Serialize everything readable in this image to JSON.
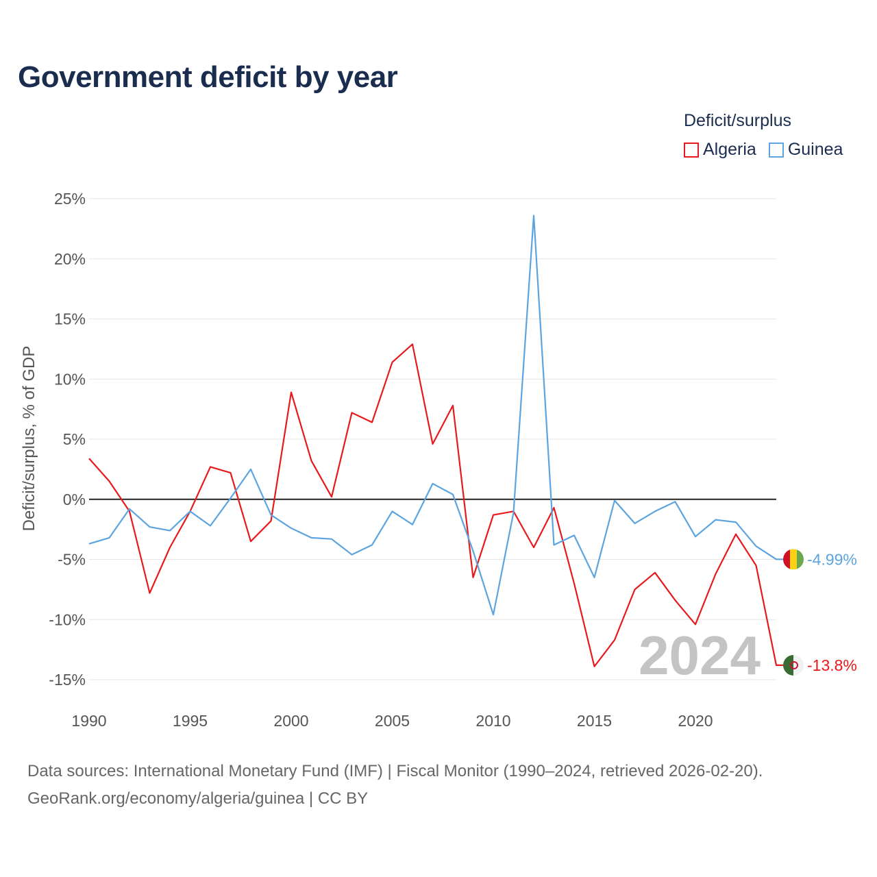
{
  "title": "Government deficit by year",
  "legend": {
    "title": "Deficit/surplus",
    "items": [
      {
        "label": "Algeria",
        "color": "#e8191b"
      },
      {
        "label": "Guinea",
        "color": "#5ba4e0"
      }
    ]
  },
  "footer": {
    "line1": "Data sources: International Monetary Fund (IMF) | Fiscal Monitor (1990–2024, retrieved 2026-02-20).",
    "line2": "GeoRank.org/economy/algeria/guinea | CC BY"
  },
  "chart_data": {
    "type": "line",
    "title": "Government deficit by year",
    "xlabel": "",
    "ylabel": "Deficit/surplus, % of GDP",
    "xlim": [
      1990,
      2024
    ],
    "ylim": [
      -17,
      25
    ],
    "yticks": [
      25,
      20,
      15,
      10,
      5,
      0,
      -5,
      -10,
      -15
    ],
    "ytick_labels": [
      "25%",
      "20%",
      "15%",
      "10%",
      "5%",
      "0%",
      "-5%",
      "-10%",
      "-15%"
    ],
    "xticks": [
      1990,
      1995,
      2000,
      2005,
      2010,
      2015,
      2020
    ],
    "xtick_labels": [
      "1990",
      "1995",
      "2000",
      "2005",
      "2010",
      "2015",
      "2020"
    ],
    "year_label": "2024",
    "grid": true,
    "legend_position": "top-right",
    "x": [
      1990,
      1991,
      1992,
      1993,
      1994,
      1995,
      1996,
      1997,
      1998,
      1999,
      2000,
      2001,
      2002,
      2003,
      2004,
      2005,
      2006,
      2007,
      2008,
      2009,
      2010,
      2011,
      2012,
      2013,
      2014,
      2015,
      2016,
      2017,
      2018,
      2019,
      2020,
      2021,
      2022,
      2023,
      2024
    ],
    "series": [
      {
        "name": "Algeria",
        "color": "#e8191b",
        "end_label": "-13.8%",
        "values": [
          3.4,
          1.5,
          -1.0,
          -7.8,
          -4.0,
          -1.0,
          2.7,
          2.2,
          -3.5,
          -1.8,
          8.9,
          3.2,
          0.2,
          7.2,
          6.4,
          11.4,
          12.9,
          4.6,
          7.8,
          -6.5,
          -1.3,
          -1.0,
          -4.0,
          -0.7,
          -7.0,
          -13.9,
          -11.7,
          -7.5,
          -6.1,
          -8.4,
          -10.4,
          -6.2,
          -2.9,
          -5.5,
          -13.8
        ]
      },
      {
        "name": "Guinea",
        "color": "#5ba4e0",
        "end_label": "-4.99%",
        "values": [
          -3.7,
          -3.2,
          -0.8,
          -2.3,
          -2.6,
          -1.0,
          -2.2,
          0.1,
          2.5,
          -1.3,
          -2.4,
          -3.2,
          -3.3,
          -4.6,
          -3.8,
          -1.0,
          -2.1,
          1.3,
          0.4,
          -4.3,
          -9.6,
          -1.1,
          23.6,
          -3.8,
          -3.0,
          -6.5,
          -0.1,
          -2.0,
          -1.0,
          -0.2,
          -3.1,
          -1.7,
          -1.9,
          -3.9,
          -4.99
        ]
      }
    ]
  }
}
